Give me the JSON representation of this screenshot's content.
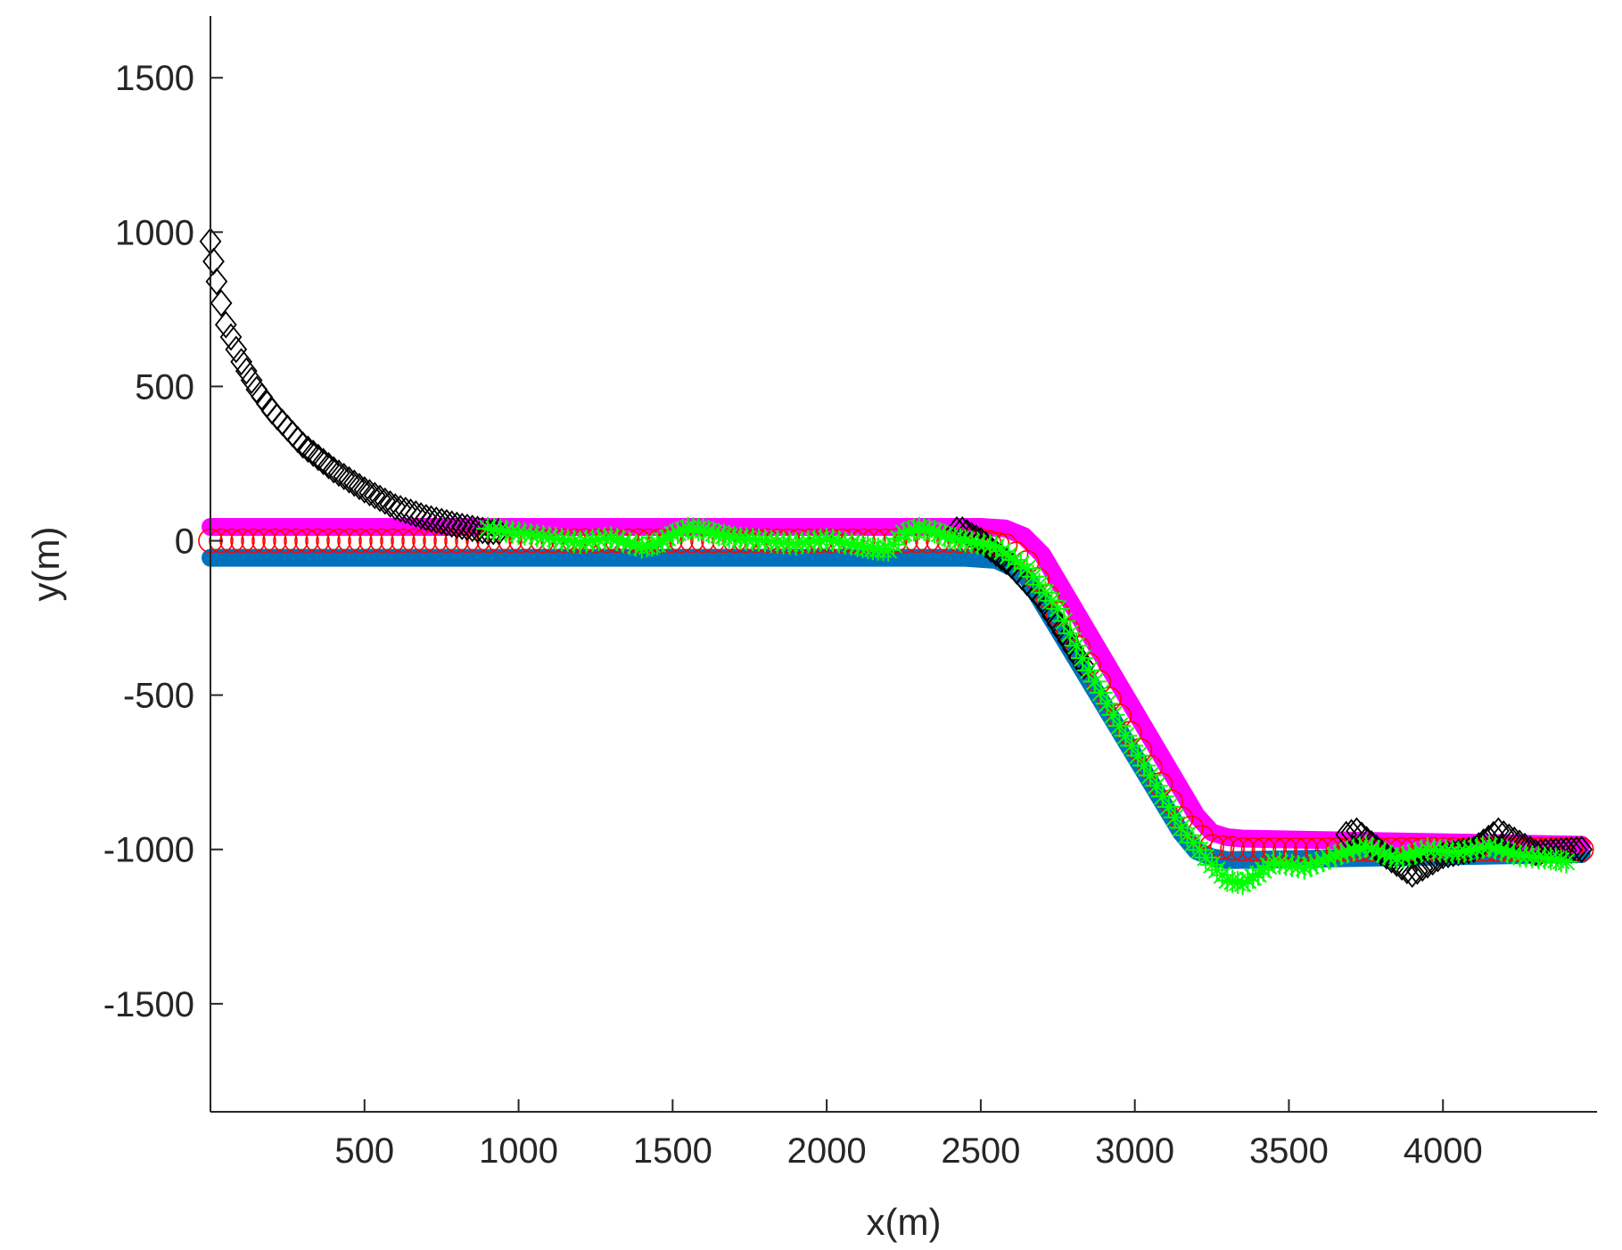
{
  "chart_data": {
    "type": "scatter",
    "title": "",
    "xlabel": "x(m)",
    "ylabel": "y(m)",
    "xlim": [
      0,
      4500
    ],
    "ylim": [
      -1850,
      1700
    ],
    "xticks": [
      500,
      1000,
      1500,
      2000,
      2500,
      3000,
      3500,
      4000
    ],
    "yticks": [
      -1500,
      -1000,
      -500,
      0,
      500,
      1000,
      1500
    ],
    "xtick_labels": [
      "500",
      "1000",
      "1500",
      "2000",
      "2500",
      "3000",
      "3500",
      "4000"
    ],
    "ytick_labels": [
      "-1500",
      "-1000",
      "-500",
      "0",
      "500",
      "1000",
      "1500"
    ],
    "grid": false,
    "legend": "none",
    "series": [
      {
        "marker": "band",
        "color": "#0072BD",
        "x": [
          0,
          2450,
          2550,
          2600,
          2650,
          3150,
          3200,
          3250,
          3300,
          4450
        ],
        "y": [
          -55,
          -55,
          -62,
          -85,
          -120,
          -945,
          -1005,
          -1025,
          -1035,
          -1015
        ]
      },
      {
        "marker": "band",
        "color": "#FF00FF",
        "x": [
          0,
          2500,
          2580,
          2640,
          2700,
          3200,
          3250,
          3300,
          3350,
          4450
        ],
        "y": [
          45,
          45,
          40,
          15,
          -45,
          -890,
          -945,
          -960,
          -965,
          -985
        ]
      },
      {
        "marker": "circle",
        "color": "#FF0000",
        "x": [
          0,
          2500,
          2580,
          2650,
          3150,
          3250,
          3350,
          4450
        ],
        "y": [
          0,
          0,
          -15,
          -70,
          -900,
          -990,
          -1000,
          -1000
        ]
      },
      {
        "marker": "diamond",
        "color": "#000000",
        "x": [
          0,
          20,
          50,
          100,
          150,
          200,
          300,
          400,
          500,
          600,
          700,
          800,
          900,
          2440,
          2500,
          2600,
          2700,
          2800,
          3200,
          3300,
          3400,
          3550,
          3720,
          3800,
          3900,
          4000,
          4100,
          4180,
          4300,
          4450
        ],
        "y": [
          970,
          840,
          700,
          580,
          490,
          420,
          310,
          230,
          165,
          110,
          75,
          50,
          30,
          35,
          0,
          -80,
          -190,
          -350,
          -980,
          -1000,
          -1010,
          -1000,
          -940,
          -1010,
          -1080,
          -1020,
          -1000,
          -940,
          -1010,
          -1000
        ]
      },
      {
        "marker": "asterisk",
        "color": "#00FF00",
        "x": [
          900,
          1000,
          1100,
          1200,
          1300,
          1400,
          1450,
          1500,
          1550,
          1600,
          1650,
          1700,
          1800,
          1900,
          2000,
          2100,
          2150,
          2200,
          2250,
          2300,
          2350,
          2400,
          2450,
          2550,
          2650,
          2750,
          2850,
          2950,
          3050,
          3150,
          3250,
          3300,
          3350,
          3400,
          3450,
          3550,
          3650,
          3750,
          3850,
          3950,
          4050,
          4150,
          4250,
          4350,
          4400
        ],
        "y": [
          40,
          25,
          10,
          -5,
          10,
          -20,
          -10,
          20,
          40,
          35,
          20,
          10,
          0,
          -10,
          5,
          -15,
          -25,
          -30,
          25,
          40,
          30,
          10,
          0,
          -20,
          -90,
          -220,
          -420,
          -600,
          -760,
          -930,
          -1050,
          -1100,
          -1110,
          -1080,
          -1040,
          -1060,
          -1020,
          -990,
          -1030,
          -1000,
          -1010,
          -990,
          -1020,
          -1030,
          -1040
        ]
      }
    ]
  }
}
